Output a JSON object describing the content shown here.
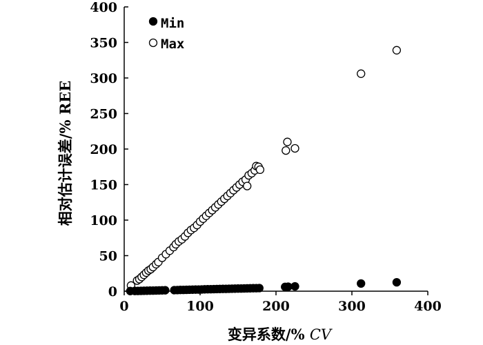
{
  "chart_data": {
    "type": "scatter",
    "xlabel_main": "变异系数/% ",
    "xlabel_italic": "CV",
    "ylabel": "相对估计误差/% REE",
    "xlim": [
      0,
      400
    ],
    "ylim": [
      0,
      400
    ],
    "x_ticks": [
      "0",
      "100",
      "200",
      "300",
      "400"
    ],
    "y_ticks": [
      "0",
      "50",
      "100",
      "150",
      "200",
      "250",
      "300",
      "350",
      "400"
    ],
    "grid": false,
    "legend_position": "top-left",
    "series": [
      {
        "name": "Min",
        "marker": "filled-circle",
        "color": "#000000",
        "points": [
          [
            8,
            0.2
          ],
          [
            14,
            0.3
          ],
          [
            18,
            0.4
          ],
          [
            22,
            0.5
          ],
          [
            26,
            0.6
          ],
          [
            30,
            0.7
          ],
          [
            34,
            0.8
          ],
          [
            38,
            0.9
          ],
          [
            42,
            1.0
          ],
          [
            46,
            1.1
          ],
          [
            50,
            1.2
          ],
          [
            54,
            1.3
          ],
          [
            66,
            1.5
          ],
          [
            70,
            1.6
          ],
          [
            74,
            1.7
          ],
          [
            78,
            1.8
          ],
          [
            82,
            1.9
          ],
          [
            86,
            2.0
          ],
          [
            90,
            2.1
          ],
          [
            94,
            2.2
          ],
          [
            98,
            2.3
          ],
          [
            102,
            2.4
          ],
          [
            106,
            2.6
          ],
          [
            110,
            2.7
          ],
          [
            114,
            2.8
          ],
          [
            118,
            2.9
          ],
          [
            122,
            3.0
          ],
          [
            126,
            3.1
          ],
          [
            130,
            3.2
          ],
          [
            134,
            3.3
          ],
          [
            138,
            3.4
          ],
          [
            142,
            3.5
          ],
          [
            146,
            3.6
          ],
          [
            150,
            3.7
          ],
          [
            154,
            3.8
          ],
          [
            158,
            3.9
          ],
          [
            162,
            4.0
          ],
          [
            166,
            4.1
          ],
          [
            170,
            4.2
          ],
          [
            174,
            4.3
          ],
          [
            178,
            4.4
          ],
          [
            212,
            6.0
          ],
          [
            216,
            6.3
          ],
          [
            225,
            6.8
          ],
          [
            312,
            10.8
          ],
          [
            359,
            12.5
          ]
        ]
      },
      {
        "name": "Max",
        "marker": "open-circle",
        "color": "#000000",
        "points": [
          [
            9,
            8
          ],
          [
            17,
            15
          ],
          [
            20,
            17
          ],
          [
            23,
            20
          ],
          [
            26,
            23
          ],
          [
            29,
            26
          ],
          [
            32,
            29
          ],
          [
            35,
            31
          ],
          [
            38,
            34
          ],
          [
            42,
            38
          ],
          [
            45,
            41
          ],
          [
            50,
            47
          ],
          [
            55,
            52
          ],
          [
            60,
            57
          ],
          [
            65,
            62
          ],
          [
            68,
            66
          ],
          [
            72,
            70
          ],
          [
            76,
            73
          ],
          [
            80,
            77
          ],
          [
            84,
            82
          ],
          [
            88,
            86
          ],
          [
            92,
            89
          ],
          [
            96,
            93
          ],
          [
            100,
            98
          ],
          [
            104,
            102
          ],
          [
            108,
            106
          ],
          [
            112,
            110
          ],
          [
            116,
            114
          ],
          [
            120,
            118
          ],
          [
            124,
            122
          ],
          [
            128,
            126
          ],
          [
            132,
            130
          ],
          [
            136,
            134
          ],
          [
            140,
            138
          ],
          [
            144,
            142
          ],
          [
            148,
            146
          ],
          [
            152,
            150
          ],
          [
            156,
            154
          ],
          [
            160,
            157
          ],
          [
            162,
            148
          ],
          [
            164,
            163
          ],
          [
            168,
            166
          ],
          [
            172,
            170
          ],
          [
            174,
            176
          ],
          [
            177,
            175
          ],
          [
            179,
            171
          ],
          [
            213,
            198
          ],
          [
            215,
            210
          ],
          [
            225,
            201
          ],
          [
            312,
            306
          ],
          [
            359,
            339
          ]
        ]
      }
    ]
  },
  "legend": {
    "min_label": "Min",
    "max_label": "Max"
  }
}
